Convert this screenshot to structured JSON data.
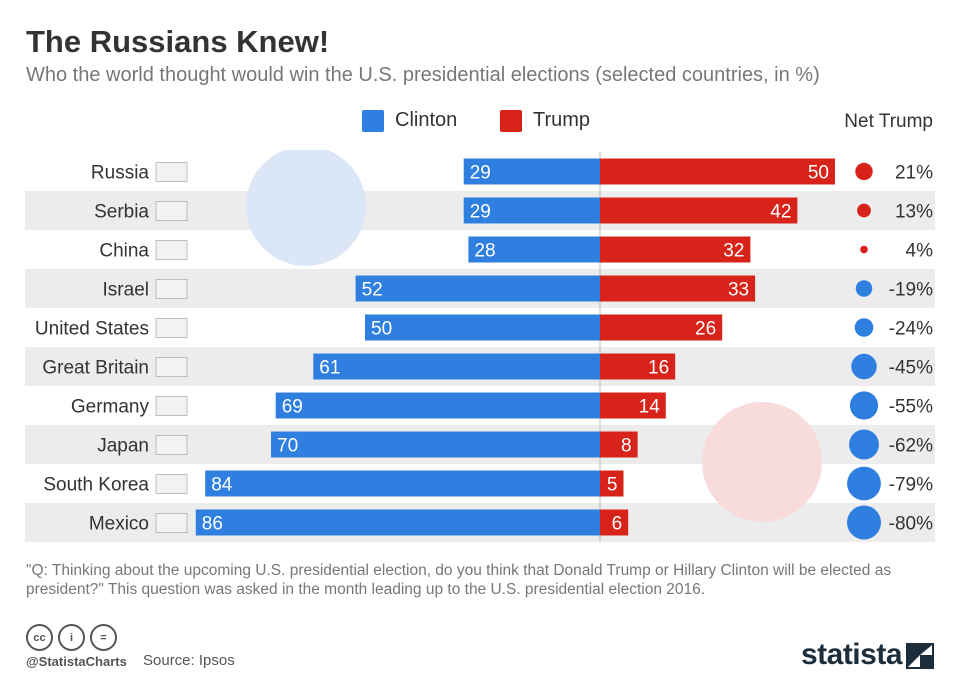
{
  "title": "The Russians Knew!",
  "subtitle": "Who the world thought would win the U.S. presidential elections (selected countries, in %)",
  "legend": {
    "clinton_label": "Clinton",
    "trump_label": "Trump",
    "net_label": "Net Trump"
  },
  "colors": {
    "clinton": "#2f7fe0",
    "trump": "#d7231a",
    "stripe": "#ececec"
  },
  "chart_data": {
    "type": "bar",
    "categories": [
      "Russia",
      "Serbia",
      "China",
      "Israel",
      "United States",
      "Great Britain",
      "Germany",
      "Japan",
      "South Korea",
      "Mexico"
    ],
    "series": [
      {
        "name": "Clinton",
        "values": [
          29,
          29,
          28,
          52,
          50,
          61,
          69,
          70,
          84,
          86
        ]
      },
      {
        "name": "Trump",
        "values": [
          50,
          42,
          32,
          33,
          26,
          16,
          14,
          8,
          5,
          6
        ]
      }
    ],
    "net_trump": [
      "21%",
      "13%",
      "4%",
      "-19%",
      "-24%",
      "-45%",
      "-55%",
      "-62%",
      "-79%",
      "-80%"
    ],
    "net_trump_values": [
      21,
      13,
      4,
      -19,
      -24,
      -45,
      -55,
      -62,
      -79,
      -80
    ]
  },
  "footnote": "\"Q: Thinking about the upcoming U.S. presidential election, do you think that Donald Trump or Hillary Clinton will be elected as president?\" This question was asked in the month leading up to the U.S. presidential election 2016.",
  "footer": {
    "handle": "@StatistaCharts",
    "source": "Source: Ipsos",
    "brand": "statista",
    "license_icons": [
      "cc",
      "i",
      "="
    ]
  }
}
